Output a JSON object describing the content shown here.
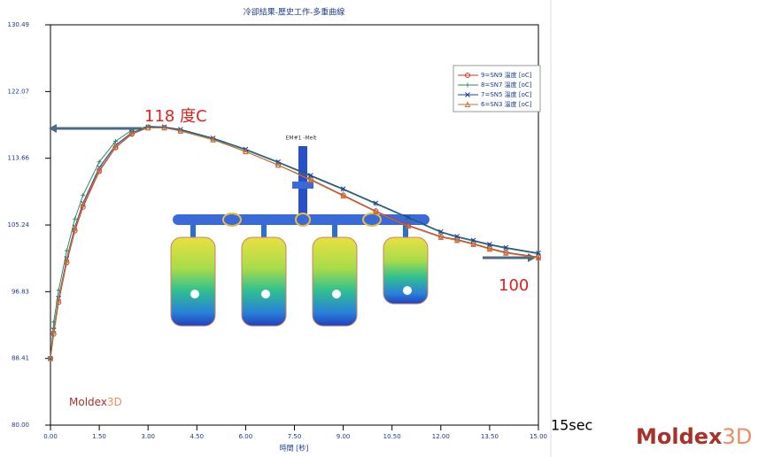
{
  "chart_data": {
    "type": "line",
    "title": "冷卻結果-歷史工作-多重曲線",
    "x_label": "時間 [秒]",
    "x": [
      0,
      0.1,
      0.25,
      0.5,
      0.75,
      1,
      1.5,
      2,
      2.5,
      3,
      3.5,
      4,
      5,
      6,
      7,
      8,
      9,
      10,
      11,
      12,
      12.5,
      13,
      13.5,
      14,
      15
    ],
    "series": [
      {
        "name": "9=SN9 溫度 [oC]",
        "color": "#c0392b",
        "marker": "circle",
        "values": [
          88.4,
          91.5,
          95.5,
          100.5,
          104.5,
          107.5,
          112,
          115,
          116.7,
          117.5,
          117.5,
          117.1,
          116.0,
          114.5,
          112.8,
          111.0,
          109.0,
          107.0,
          105.2,
          103.8,
          103.4,
          102.9,
          102.3,
          101.8,
          101.2
        ]
      },
      {
        "name": "8=SN7 溫度 [oC]",
        "color": "#2e8b57",
        "marker": "plus",
        "values": [
          88.4,
          93,
          97,
          102,
          106,
          109,
          113.2,
          115.8,
          117.2,
          117.7,
          117.6,
          117.2,
          116.1,
          114.7,
          113.1,
          111.4,
          109.7,
          107.9,
          106.1,
          104.3,
          103.7,
          103.2,
          102.7,
          102.3,
          101.6
        ]
      },
      {
        "name": "7=SN5 溫度 [oC]",
        "color": "#1f3f9f",
        "marker": "x",
        "values": [
          88.4,
          92,
          96,
          101,
          105,
          108,
          112.5,
          115.3,
          116.9,
          117.6,
          117.6,
          117.3,
          116.2,
          114.8,
          113.2,
          111.5,
          109.8,
          108.0,
          106.2,
          104.4,
          103.8,
          103.3,
          102.8,
          102.4,
          101.7
        ]
      },
      {
        "name": "6=SN3 溫度 [oC]",
        "color": "#c87533",
        "marker": "triangle",
        "values": [
          88.4,
          91.8,
          95.8,
          100.8,
          104.8,
          107.8,
          112.2,
          115.1,
          116.8,
          117.5,
          117.5,
          117.1,
          116.0,
          114.5,
          112.8,
          110.9,
          108.9,
          106.9,
          105.1,
          103.7,
          103.3,
          102.8,
          102.2,
          101.7,
          101.1
        ]
      }
    ],
    "xlim": [
      0,
      15
    ],
    "xticks": [
      {
        "value": 0,
        "label": "0.00"
      },
      {
        "value": 1.5,
        "label": "1.50"
      },
      {
        "value": 3,
        "label": "3.00"
      },
      {
        "value": 4.5,
        "label": "4.50"
      },
      {
        "value": 6,
        "label": "6.00"
      },
      {
        "value": 7.5,
        "label": "7.50"
      },
      {
        "value": 9,
        "label": "9.00"
      },
      {
        "value": 10.5,
        "label": "10.50"
      },
      {
        "value": 12,
        "label": "12.00"
      },
      {
        "value": 13.5,
        "label": "13.50"
      },
      {
        "value": 15,
        "label": "15.00"
      }
    ],
    "ylim": [
      80,
      130.49
    ],
    "yticks": [
      {
        "value": 80,
        "label": "80.00"
      },
      {
        "value": 88.41,
        "label": "88.41"
      },
      {
        "value": 96.83,
        "label": "96.83"
      },
      {
        "value": 105.24,
        "label": "105.24"
      },
      {
        "value": 113.66,
        "label": "113.66"
      },
      {
        "value": 122.07,
        "label": "122.07"
      },
      {
        "value": 130.49,
        "label": "130.49"
      }
    ],
    "legend": "upper right",
    "annotations": [
      "118 度C",
      "100",
      "15sec",
      "EM#1 -Melt"
    ],
    "logo_text": "Moldex",
    "logo_suffix": "3D"
  }
}
